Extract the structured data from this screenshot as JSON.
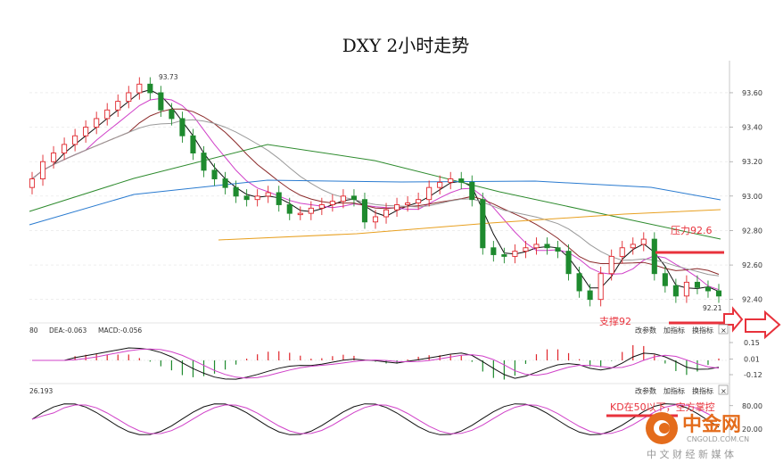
{
  "chart_data": {
    "type": "candlestick",
    "title": "DXY 2小时走势",
    "ylim": [
      92.3,
      93.75
    ],
    "price_ticks": [
      "93.60",
      "93.40",
      "93.20",
      "93.00",
      "92.80",
      "92.60",
      "92.40"
    ],
    "macd_ticks": [
      "0.15",
      "0.01",
      "-0.12"
    ],
    "kd_ticks": [
      "80.00",
      "20.00"
    ],
    "high_label": "93.73",
    "low_label": "92.21",
    "macd_header": [
      "DEA:-0.063",
      "MACD:-0.056"
    ],
    "macd_header_prefix": "80",
    "kd_header": "26.193",
    "panel_buttons": [
      "改参数",
      "加指标",
      "换指标"
    ],
    "close_symbol": "×",
    "annotations": {
      "resistance": "压力92.6",
      "support": "支撑92",
      "kd_note": "KD在50以下，空方掌控"
    },
    "key_levels": {
      "resistance": 92.6,
      "support": 92.3
    },
    "closes": [
      93.1,
      93.2,
      93.25,
      93.3,
      93.35,
      93.4,
      93.45,
      93.5,
      93.55,
      93.6,
      93.65,
      93.6,
      93.5,
      93.45,
      93.35,
      93.25,
      93.15,
      93.1,
      93.05,
      93.0,
      92.98,
      93.0,
      93.02,
      92.95,
      92.9,
      92.9,
      92.93,
      92.95,
      92.97,
      93.0,
      92.98,
      92.85,
      92.88,
      92.92,
      92.95,
      92.96,
      92.98,
      93.05,
      93.08,
      93.1,
      93.08,
      92.98,
      92.7,
      92.66,
      92.65,
      92.68,
      92.7,
      92.72,
      92.7,
      92.68,
      92.55,
      92.45,
      92.4,
      92.55,
      92.65,
      92.7,
      92.72,
      92.75,
      92.55,
      92.48,
      92.42,
      92.5,
      92.47,
      92.45,
      92.42
    ],
    "ma_legend": [],
    "colors": {
      "up": "#e0262c",
      "down": "#1e8a2e",
      "ma5": "#111111",
      "ma10": "#d040c8",
      "ma20": "#8b2a2a",
      "ma30": "#9a9a9a",
      "ma60": "#2e8b2e",
      "ma120": "#2a7bd0",
      "ma250": "#e8a020",
      "ann": "#e8323c"
    }
  },
  "watermark": {
    "brand": "中金网",
    "url": "CNGOLD.COM.CN",
    "subtitle": "中 文 财 经 新 媒 体"
  }
}
